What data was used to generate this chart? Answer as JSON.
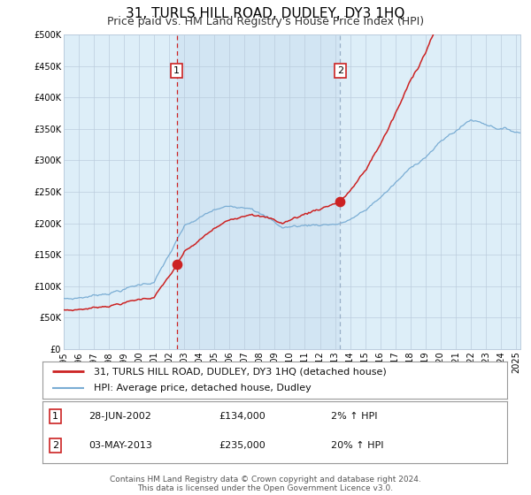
{
  "title": "31, TURLS HILL ROAD, DUDLEY, DY3 1HQ",
  "subtitle": "Price paid vs. HM Land Registry's House Price Index (HPI)",
  "ylim": [
    0,
    500000
  ],
  "yticks": [
    0,
    50000,
    100000,
    150000,
    200000,
    250000,
    300000,
    350000,
    400000,
    450000,
    500000
  ],
  "ytick_labels": [
    "£0",
    "£50K",
    "£100K",
    "£150K",
    "£200K",
    "£250K",
    "£300K",
    "£350K",
    "£400K",
    "£450K",
    "£500K"
  ],
  "xlim_start": 1995.0,
  "xlim_end": 2025.3,
  "xticks": [
    1995,
    1996,
    1997,
    1998,
    1999,
    2000,
    2001,
    2002,
    2003,
    2004,
    2005,
    2006,
    2007,
    2008,
    2009,
    2010,
    2011,
    2012,
    2013,
    2014,
    2015,
    2016,
    2017,
    2018,
    2019,
    2020,
    2021,
    2022,
    2023,
    2024,
    2025
  ],
  "hpi_color": "#7aadd4",
  "price_color": "#cc2222",
  "dot_color": "#cc2222",
  "dot_size": 55,
  "sale1_x": 2002.49,
  "sale1_y": 134000,
  "sale2_x": 2013.34,
  "sale2_y": 235000,
  "vline1_x": 2002.49,
  "vline2_x": 2013.34,
  "plot_bg_color": "#ddeef8",
  "grid_color": "#bbccdd",
  "background_color": "#ffffff",
  "legend_line1": "31, TURLS HILL ROAD, DUDLEY, DY3 1HQ (detached house)",
  "legend_line2": "HPI: Average price, detached house, Dudley",
  "annotation1_label": "1",
  "annotation1_date": "28-JUN-2002",
  "annotation1_price": "£134,000",
  "annotation1_hpi": "2% ↑ HPI",
  "annotation2_label": "2",
  "annotation2_date": "03-MAY-2013",
  "annotation2_price": "£235,000",
  "annotation2_hpi": "20% ↑ HPI",
  "footer1": "Contains HM Land Registry data © Crown copyright and database right 2024.",
  "footer2": "This data is licensed under the Open Government Licence v3.0.",
  "title_fontsize": 11,
  "subtitle_fontsize": 9,
  "tick_fontsize": 7,
  "legend_fontsize": 8,
  "annotation_fontsize": 8,
  "footer_fontsize": 6.5
}
